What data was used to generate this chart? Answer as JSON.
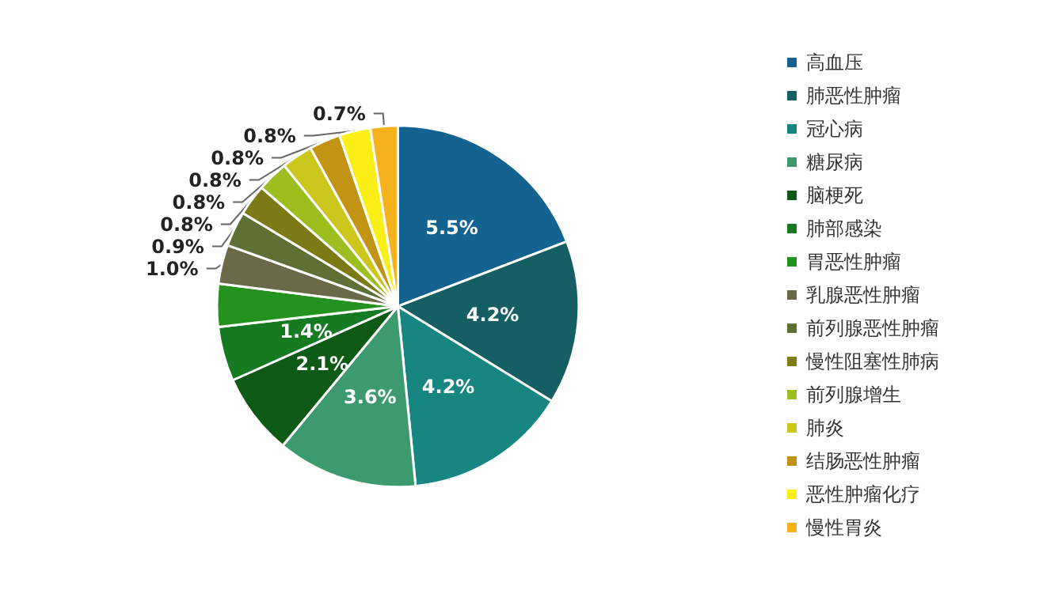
{
  "chart_data": {
    "type": "pie",
    "categories": [
      "高血压",
      "肺恶性肿瘤",
      "冠心病",
      "糖尿病",
      "脑梗死",
      "肺部感染",
      "胃恶性肿瘤",
      "乳腺恶性肿瘤",
      "前列腺恶性肿瘤",
      "慢性阻塞性肺病",
      "前列腺增生",
      "肺炎",
      "结肠恶性肿瘤",
      "恶性肿瘤化疗",
      "慢性胃炎"
    ],
    "values": [
      5.5,
      4.2,
      4.2,
      3.6,
      2.1,
      1.4,
      1.1,
      1.0,
      0.9,
      0.8,
      0.8,
      0.8,
      0.8,
      0.8,
      0.7
    ],
    "value_labels": [
      "5.5%",
      "4.2%",
      "4.2%",
      "3.6%",
      "2.1%",
      "1.4%",
      null,
      "1.0%",
      "0.9%",
      "0.8%",
      "0.8%",
      "0.8%",
      "0.8%",
      "0.8%",
      "0.7%"
    ],
    "colors": [
      "#14628f",
      "#155e63",
      "#178582",
      "#3d9a6e",
      "#0d5a14",
      "#157a22",
      "#23921f",
      "#6a6a48",
      "#5f7037",
      "#7b7a14",
      "#9cbe1f",
      "#cbc51c",
      "#c29414",
      "#fcee17",
      "#f6b21c"
    ],
    "legend": "right"
  }
}
